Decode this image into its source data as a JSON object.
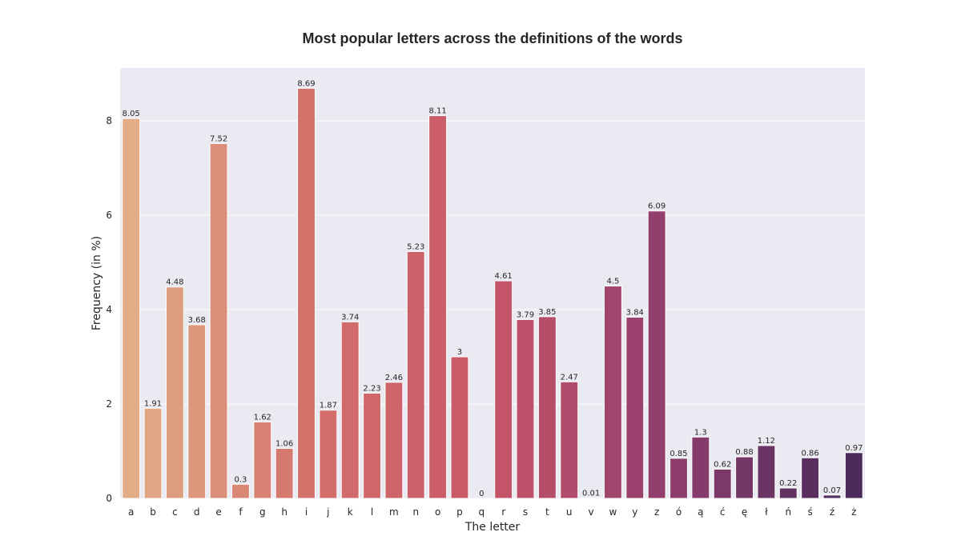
{
  "chart_data": {
    "type": "bar",
    "title": "Most popular letters across the definitions of the words",
    "xlabel": "The letter",
    "ylabel": "Frequency (in %)",
    "ylim": [
      0,
      9.12
    ],
    "yticks": [
      0,
      2,
      4,
      6,
      8
    ],
    "grid": true,
    "legend": "none",
    "categories": [
      "a",
      "b",
      "c",
      "d",
      "e",
      "f",
      "g",
      "h",
      "i",
      "j",
      "k",
      "l",
      "m",
      "n",
      "o",
      "p",
      "q",
      "r",
      "s",
      "t",
      "u",
      "v",
      "w",
      "y",
      "z",
      "ó",
      "ą",
      "ć",
      "ę",
      "ł",
      "ń",
      "ś",
      "ź",
      "ż"
    ],
    "values": [
      8.05,
      1.91,
      4.48,
      3.68,
      7.52,
      0.3,
      1.62,
      1.06,
      8.69,
      1.87,
      3.74,
      2.23,
      2.46,
      5.23,
      8.11,
      3,
      0,
      4.61,
      3.79,
      3.85,
      2.47,
      0.01,
      4.5,
      3.84,
      6.09,
      0.85,
      1.3,
      0.62,
      0.88,
      1.12,
      0.22,
      0.86,
      0.07,
      0.97
    ],
    "value_labels": [
      "8.05",
      "1.91",
      "4.48",
      "3.68",
      "7.52",
      "0.3",
      "1.62",
      "1.06",
      "8.69",
      "1.87",
      "3.74",
      "2.23",
      "2.46",
      "5.23",
      "8.11",
      "3",
      "0",
      "4.61",
      "3.79",
      "3.85",
      "2.47",
      "0.01",
      "4.5",
      "3.84",
      "6.09",
      "0.85",
      "1.3",
      "0.62",
      "0.88",
      "1.12",
      "0.22",
      "0.86",
      "0.07",
      "0.97"
    ],
    "colors": {
      "plot_background": "#eaeaf2",
      "grid": "#ffffff",
      "palette_start": "#e2ac87",
      "palette_mid1": "#d4706a",
      "palette_mid2": "#c75668",
      "palette_mid3": "#8e3d6e",
      "palette_end": "#4a2b5c"
    }
  }
}
